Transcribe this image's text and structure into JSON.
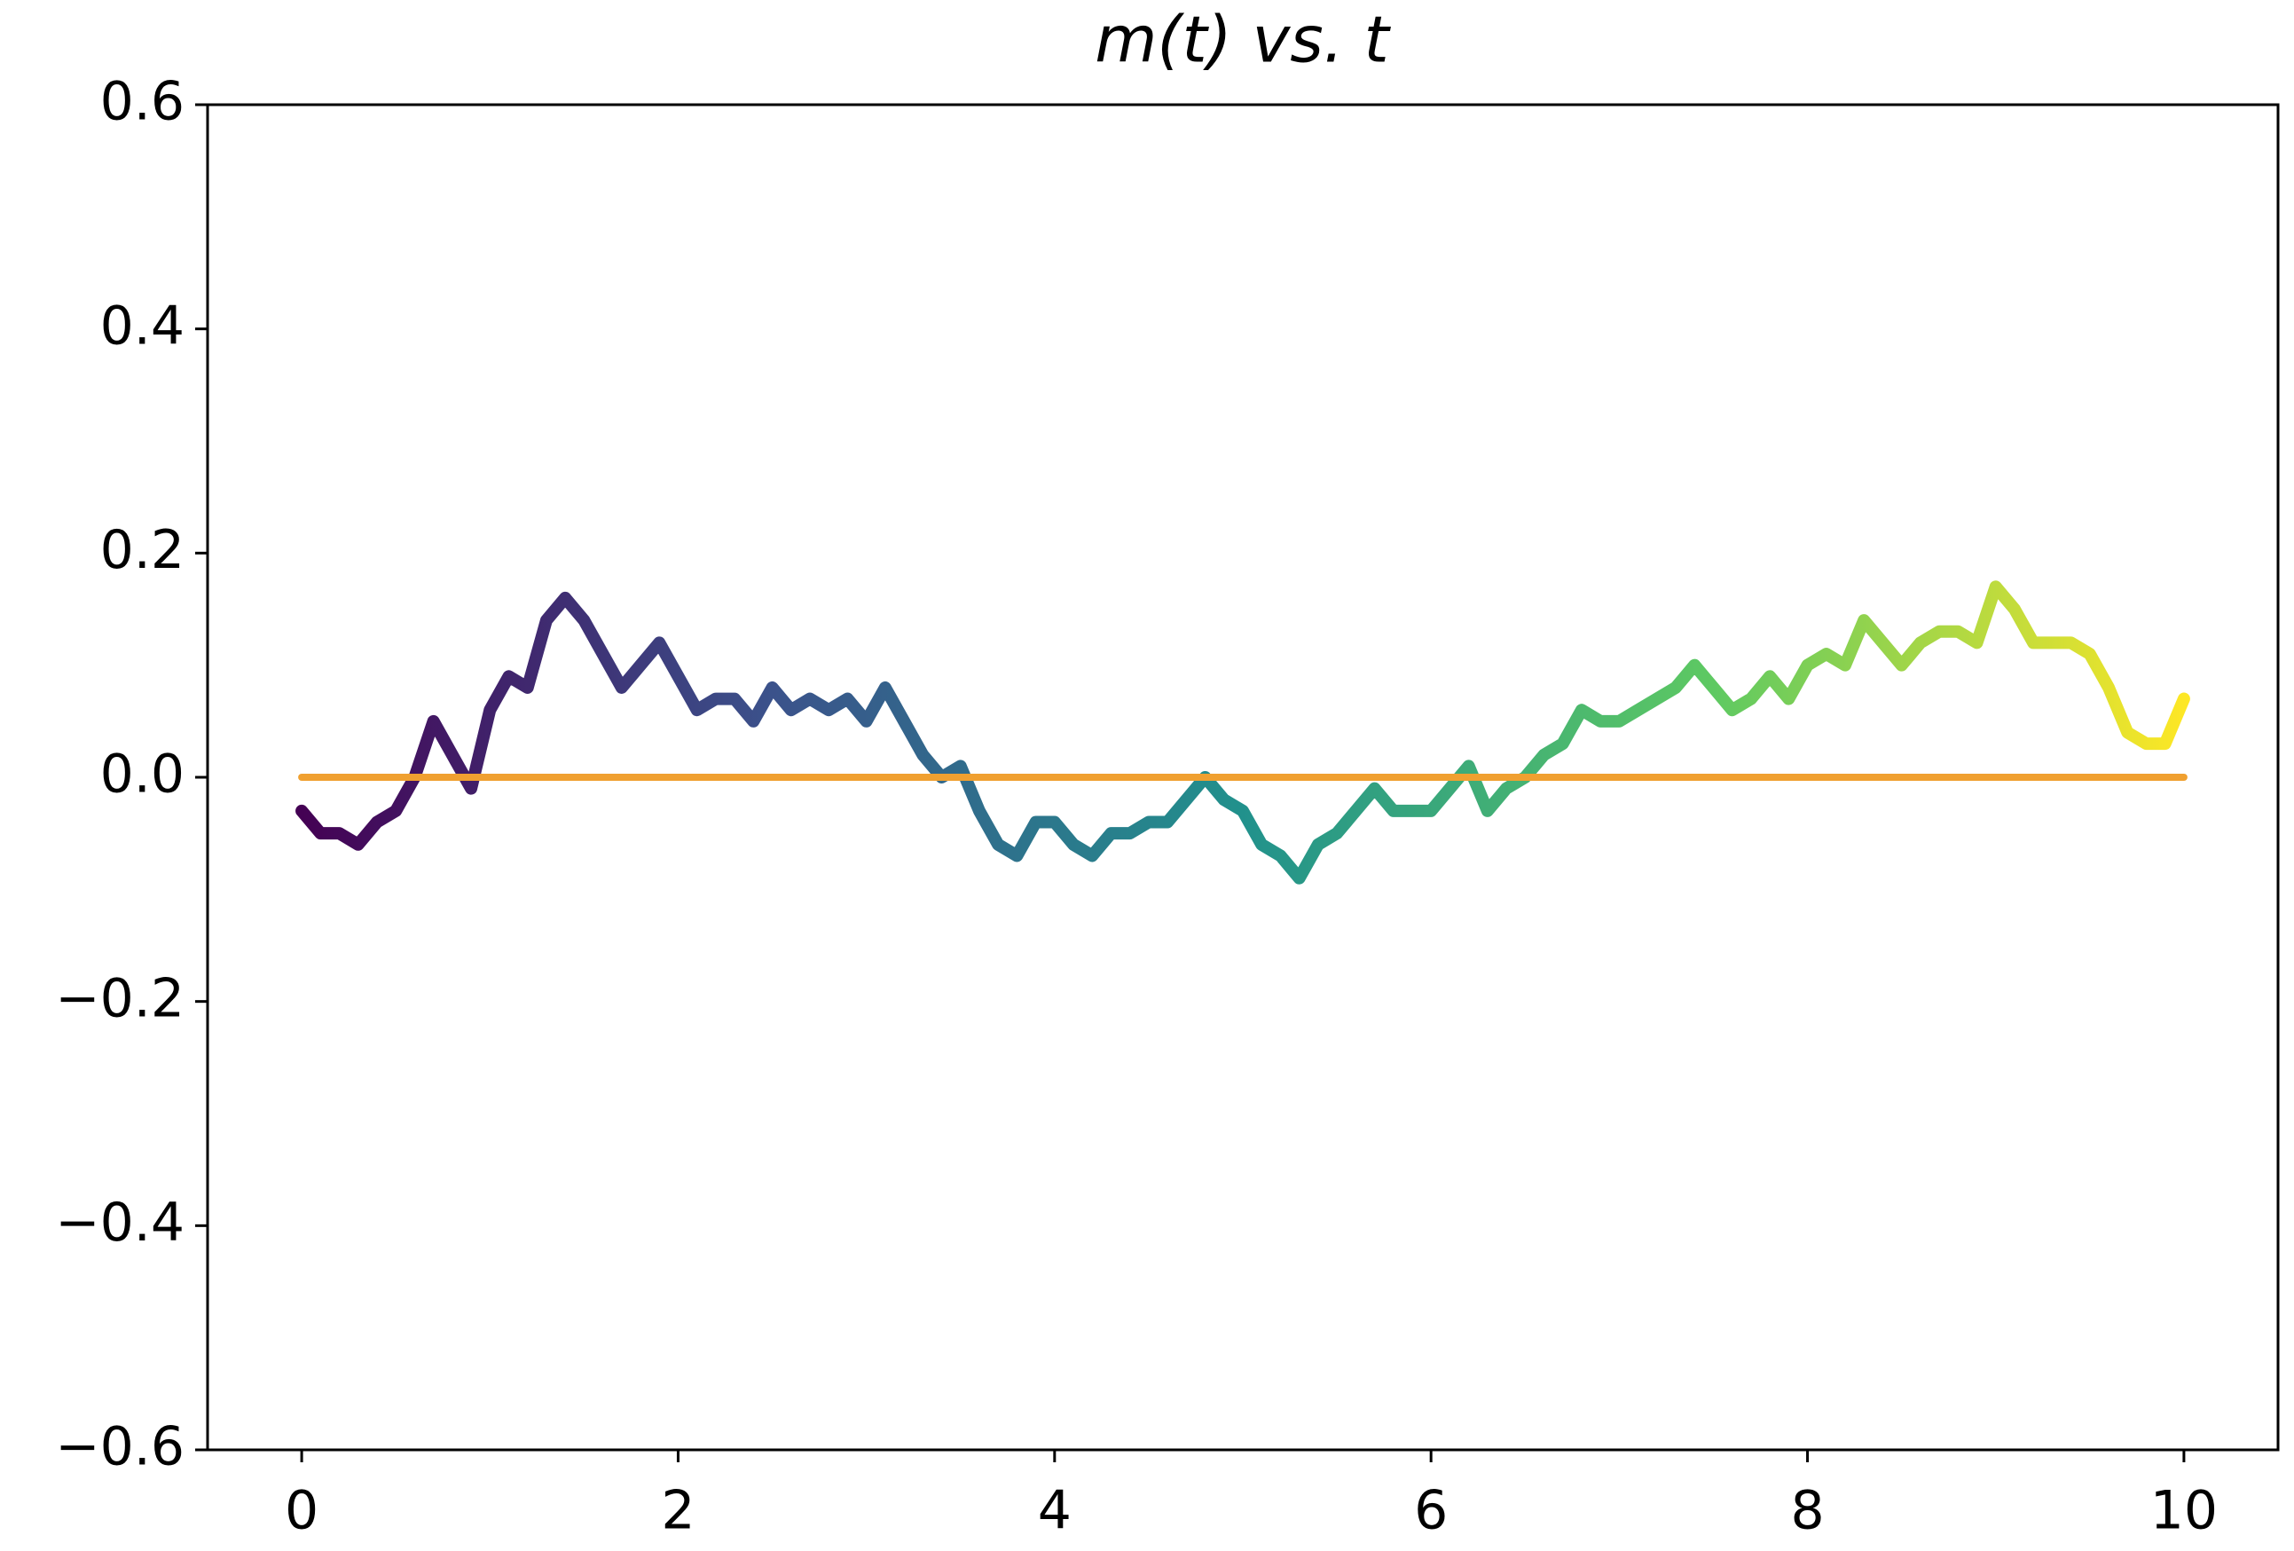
{
  "chart_data": {
    "type": "line",
    "title": "m(t) vs. t",
    "series": [
      {
        "x": [
          0,
          0.1,
          0.2,
          0.3,
          0.4,
          0.5,
          0.6,
          0.7,
          0.8,
          0.9,
          1,
          1.1,
          1.2,
          1.3,
          1.4,
          1.5,
          1.6,
          1.7,
          1.8,
          1.9,
          2,
          2.1,
          2.2,
          2.3,
          2.4,
          2.5,
          2.6,
          2.7,
          2.8,
          2.9,
          3,
          3.1,
          3.2,
          3.3,
          3.4,
          3.5,
          3.6,
          3.7,
          3.8,
          3.9,
          4,
          4.1,
          4.2,
          4.3,
          4.4,
          4.5,
          4.6,
          4.7,
          4.8,
          4.9,
          5,
          5.1,
          5.2,
          5.3,
          5.4,
          5.5,
          5.6,
          5.7,
          5.8,
          5.9,
          6,
          6.1,
          6.2,
          6.3,
          6.4,
          6.5,
          6.6,
          6.7,
          6.8,
          6.9,
          7,
          7.1,
          7.2,
          7.3,
          7.4,
          7.5,
          7.6,
          7.7,
          7.8,
          7.9,
          8,
          8.1,
          8.2,
          8.3,
          8.4,
          8.5,
          8.6,
          8.7,
          8.8,
          8.9,
          9,
          9.1,
          9.2,
          9.3,
          9.4,
          9.5,
          9.6,
          9.7,
          9.8,
          9.9,
          10
        ],
        "values": [
          -0.03,
          -0.05,
          -0.05,
          -0.06,
          -0.04,
          -0.03,
          0.0,
          0.05,
          0.02,
          -0.01,
          0.06,
          0.09,
          0.08,
          0.14,
          0.16,
          0.14,
          0.11,
          0.08,
          0.1,
          0.12,
          0.09,
          0.06,
          0.07,
          0.07,
          0.05,
          0.08,
          0.06,
          0.07,
          0.06,
          0.07,
          0.05,
          0.08,
          0.05,
          0.02,
          0.0,
          0.01,
          -0.03,
          -0.06,
          -0.07,
          -0.04,
          -0.04,
          -0.06,
          -0.07,
          -0.05,
          -0.05,
          -0.04,
          -0.04,
          -0.02,
          0.0,
          -0.02,
          -0.03,
          -0.06,
          -0.07,
          -0.09,
          -0.06,
          -0.05,
          -0.03,
          -0.01,
          -0.03,
          -0.03,
          -0.03,
          -0.01,
          0.01,
          -0.03,
          -0.01,
          0.0,
          0.02,
          0.03,
          0.06,
          0.05,
          0.05,
          0.06,
          0.07,
          0.08,
          0.1,
          0.08,
          0.06,
          0.07,
          0.09,
          0.07,
          0.1,
          0.11,
          0.1,
          0.14,
          0.12,
          0.1,
          0.12,
          0.13,
          0.13,
          0.12,
          0.17,
          0.15,
          0.12,
          0.12,
          0.12,
          0.11,
          0.08,
          0.04,
          0.03,
          0.03,
          0.07
        ],
        "colormap": [
          "#440154",
          "#3b528b",
          "#21918c",
          "#5ec962",
          "#fde725"
        ]
      },
      {
        "x": [
          0,
          10
        ],
        "values": [
          0,
          0
        ],
        "color": "#f0a030"
      }
    ],
    "xlim": [
      -0.5,
      10.5
    ],
    "ylim": [
      -0.6,
      0.6
    ],
    "xticks": [
      0,
      2,
      4,
      6,
      8,
      10
    ],
    "yticks": [
      {
        "value": -0.6,
        "label": "−0.6"
      },
      {
        "value": -0.4,
        "label": "−0.4"
      },
      {
        "value": -0.2,
        "label": "−0.2"
      },
      {
        "value": 0,
        "label": "0.0"
      },
      {
        "value": 0.2,
        "label": "0.2"
      },
      {
        "value": 0.4,
        "label": "0.4"
      },
      {
        "value": 0.6,
        "label": "0.6"
      }
    ]
  }
}
